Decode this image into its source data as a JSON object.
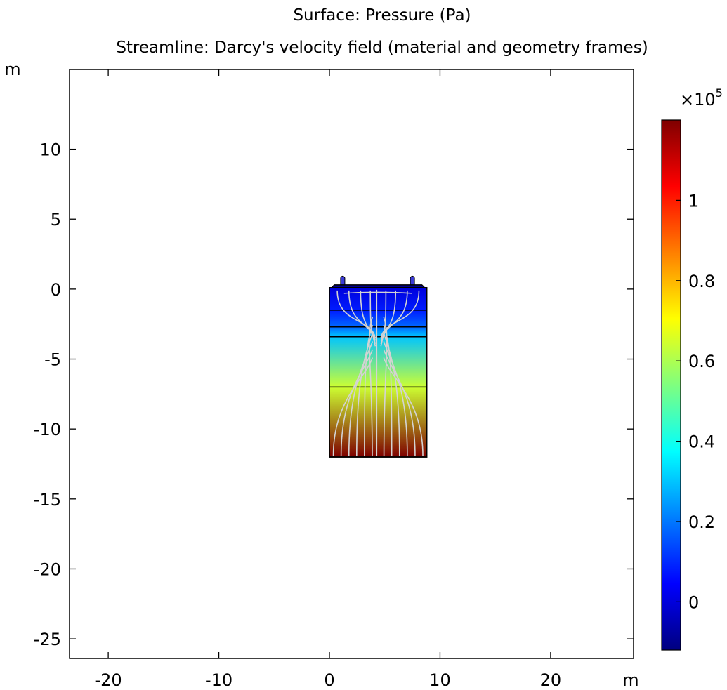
{
  "chart_data": {
    "type": "heatmap",
    "title": "Surface: Pressure (Pa)",
    "subtitle": "Streamline: Darcy's velocity field (material and geometry frames)",
    "x_unit_label": "m",
    "y_unit_label": "m",
    "xlim": [
      -23.5,
      27.5
    ],
    "ylim": [
      -26.4,
      15.7
    ],
    "x_ticks": [
      -20,
      -10,
      0,
      10,
      20
    ],
    "x_tick_labels": [
      "-20",
      "-10",
      "0",
      "10",
      "20"
    ],
    "y_ticks": [
      10,
      5,
      0,
      -5,
      -10,
      -15,
      -20,
      -25
    ],
    "y_tick_labels": [
      "10",
      "5",
      "0",
      "-5",
      "-10",
      "-15",
      "-20",
      "-25"
    ],
    "grid": false,
    "domain": {
      "x_min": 0,
      "x_max": 8.8,
      "y_min": -12,
      "y_max": 0.1
    },
    "well_tubes_x": [
      1.2,
      7.5
    ],
    "layer_boundaries_y": [
      -1.5,
      -2.7,
      -3.4,
      -7.0
    ],
    "pressure_surface": {
      "y": [
        0.1,
        -1.5,
        -2.7,
        -3.4,
        -7.0,
        -12.0
      ],
      "pressure_x1e5": [
        0.0,
        0.08,
        0.18,
        0.3,
        0.64,
        1.2
      ]
    },
    "colorbar": {
      "multiplier_base": "×10",
      "multiplier_exponent": "5",
      "range_x1e5": [
        -0.12,
        1.2
      ],
      "ticks": [
        0,
        0.2,
        0.4,
        0.6,
        0.8,
        1
      ],
      "tick_labels": [
        "0",
        "0.2",
        "0.4",
        "0.6",
        "0.8",
        "1"
      ],
      "colormap": [
        "#00007f",
        "#0000ff",
        "#007fff",
        "#00ffff",
        "#7fff7f",
        "#ffff00",
        "#ff7f00",
        "#ff0000",
        "#7f0000"
      ]
    },
    "streamline_color": "#d3d3d3"
  }
}
